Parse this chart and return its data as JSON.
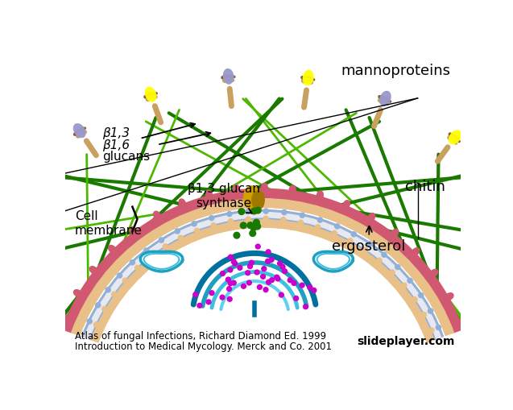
{
  "bg_color": "#ffffff",
  "title_line1": "Atlas of fungal Infections, Richard Diamond Ed. 1999",
  "title_line2": "Introduction to Medical Mycology. Merck and Co. 2001",
  "watermark": "slideplayer.com",
  "label_b13": "β1,3",
  "label_b16": "β1,6",
  "label_glucans": "glucans",
  "label_cell_membrane": "Cell\nmembrane",
  "label_b13_synthase": "β1,3 glucan\nsynthase",
  "label_mannoproteins": "mannoproteins",
  "label_chitin": "chitin",
  "label_ergosterol": "ergosterol",
  "dark_green": "#1A7A00",
  "light_green": "#4DB800",
  "pink_color": "#D05870",
  "teal_blue": "#20A0C0",
  "teal_light": "#40C0E0",
  "teal_dark": "#0070A0",
  "purple_dot": "#CC00CC",
  "gold_color": "#D4A000",
  "gold_dark": "#A07800",
  "tan_color": "#C8A060",
  "tan_dark": "#8A6030",
  "yellow_color": "#F0E000",
  "lavender_color": "#8888CC",
  "membrane_blue": "#90B0D8",
  "membrane_peach": "#E8C088",
  "membrane_white": "#E8E8F0",
  "chitin_pink": "#D05870"
}
